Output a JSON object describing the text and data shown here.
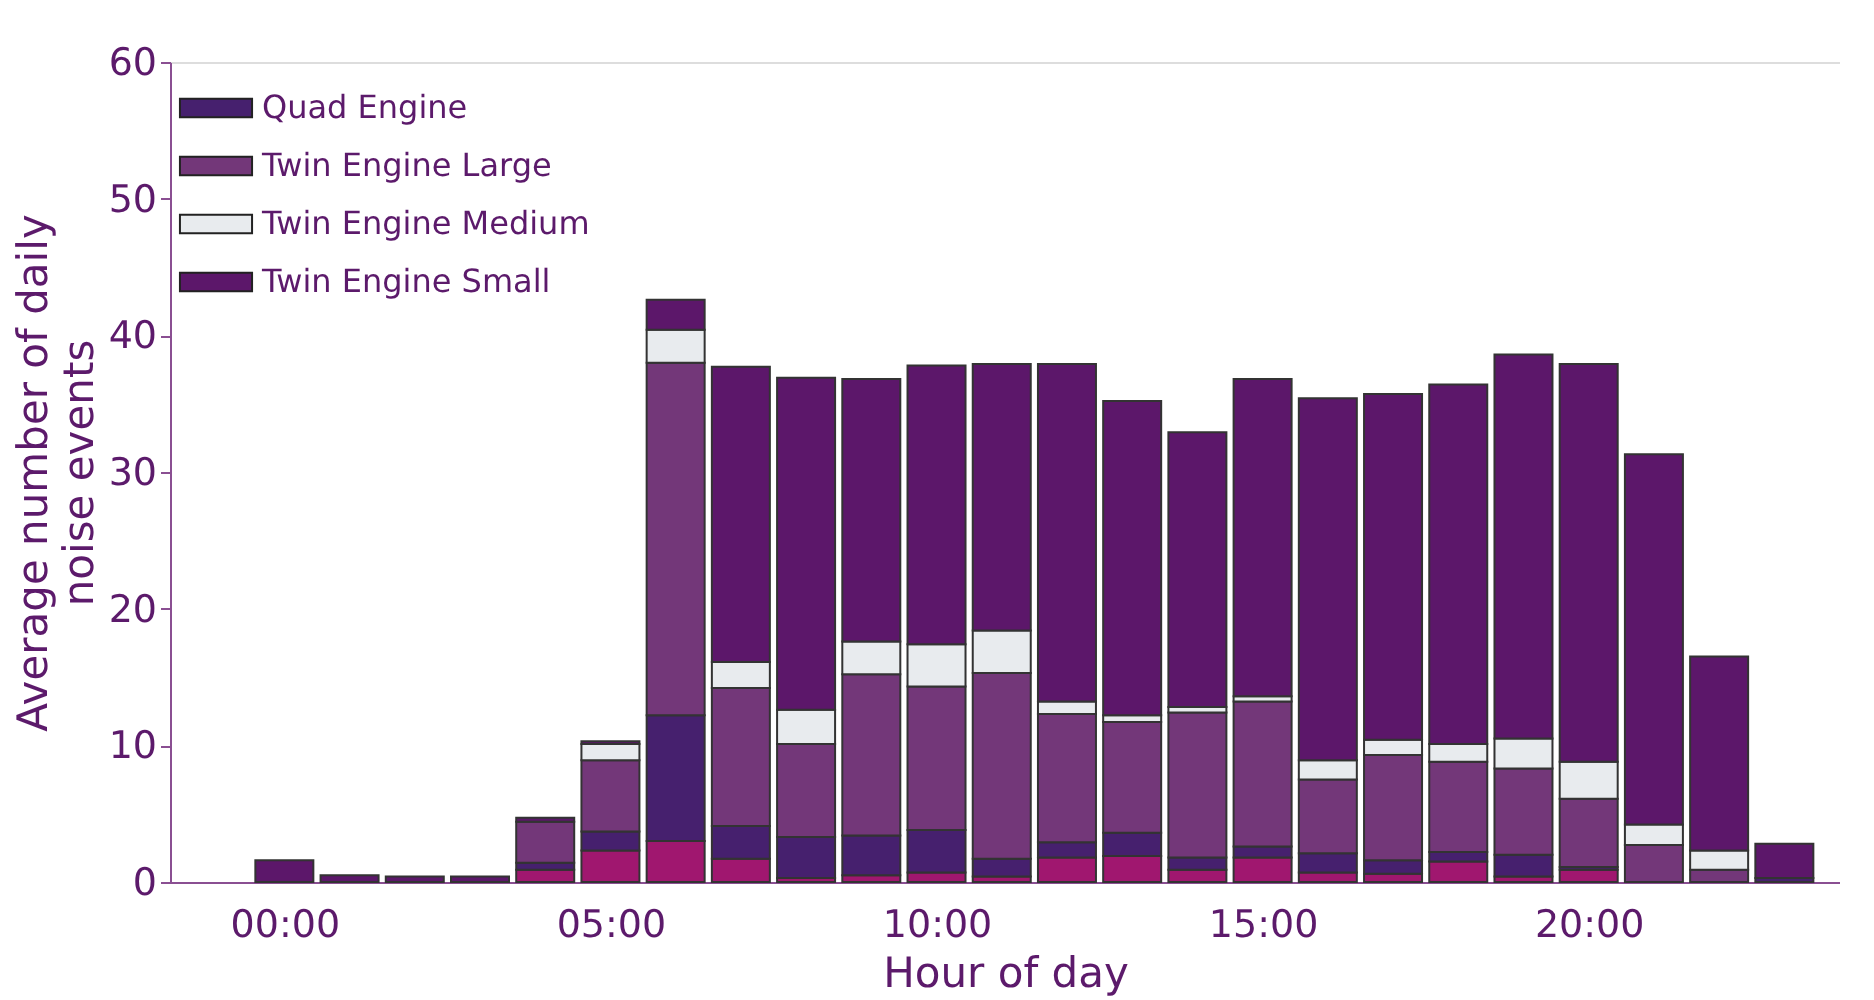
{
  "chart_data": {
    "type": "bar",
    "stacked": true,
    "xlabel": "Hour of day",
    "ylabel": "Average number of daily noise events",
    "x": [
      0,
      1,
      2,
      3,
      4,
      5,
      6,
      7,
      8,
      9,
      10,
      11,
      12,
      13,
      14,
      15,
      16,
      17,
      18,
      19,
      20,
      21,
      22,
      23
    ],
    "xlim": [
      -1.6,
      23.7
    ],
    "xticks": [
      {
        "value": 0,
        "label": "00:00"
      },
      {
        "value": 5,
        "label": "05:00"
      },
      {
        "value": 10,
        "label": "10:00"
      },
      {
        "value": 15,
        "label": "15:00"
      },
      {
        "value": 20,
        "label": "20:00"
      }
    ],
    "ylim": [
      0,
      60
    ],
    "yticks": [
      0,
      10,
      20,
      30,
      40,
      50,
      60
    ],
    "grid": false,
    "legend": "top left",
    "series": [
      {
        "color": "#a0176f",
        "values": [
          null,
          null,
          null,
          null,
          0.9,
          2.3,
          3.0,
          1.7,
          0.3,
          0.5,
          0.7,
          0.4,
          1.8,
          1.9,
          0.9,
          1.8,
          0.7,
          0.6,
          1.5,
          0.4,
          0.9,
          null,
          null,
          null
        ]
      },
      {
        "name": "Quad Engine",
        "color": "#46206e",
        "values": [
          null,
          null,
          null,
          null,
          0.5,
          1.4,
          9.2,
          2.4,
          3.0,
          2.9,
          3.1,
          1.3,
          1.1,
          1.7,
          0.9,
          0.8,
          1.4,
          1.0,
          0.7,
          1.6,
          0.2,
          null,
          null,
          0.3
        ]
      },
      {
        "name": "Twin Engine Large",
        "color": "#733779",
        "values": [
          null,
          null,
          null,
          null,
          3.0,
          5.2,
          25.8,
          10.1,
          6.8,
          11.8,
          10.5,
          13.6,
          9.4,
          8.1,
          10.6,
          10.6,
          5.4,
          7.7,
          6.6,
          6.3,
          5.0,
          2.7,
          0.9,
          null
        ]
      },
      {
        "name": "Twin Engine Medium",
        "color": "#e8ebee",
        "values": [
          null,
          null,
          null,
          null,
          null,
          1.2,
          2.4,
          1.9,
          2.5,
          2.4,
          3.1,
          3.1,
          0.9,
          0.5,
          0.4,
          0.4,
          1.4,
          1.1,
          1.3,
          2.2,
          2.7,
          1.5,
          1.4,
          null
        ]
      },
      {
        "name": "Twin Engine Small",
        "color": "#5c176a",
        "values": [
          1.6,
          0.5,
          0.4,
          0.4,
          0.3,
          0.2,
          2.2,
          21.6,
          24.3,
          19.2,
          20.4,
          19.5,
          24.7,
          23.0,
          20.1,
          23.2,
          26.5,
          25.3,
          26.3,
          28.1,
          29.1,
          27.1,
          14.2,
          2.5
        ]
      }
    ]
  }
}
